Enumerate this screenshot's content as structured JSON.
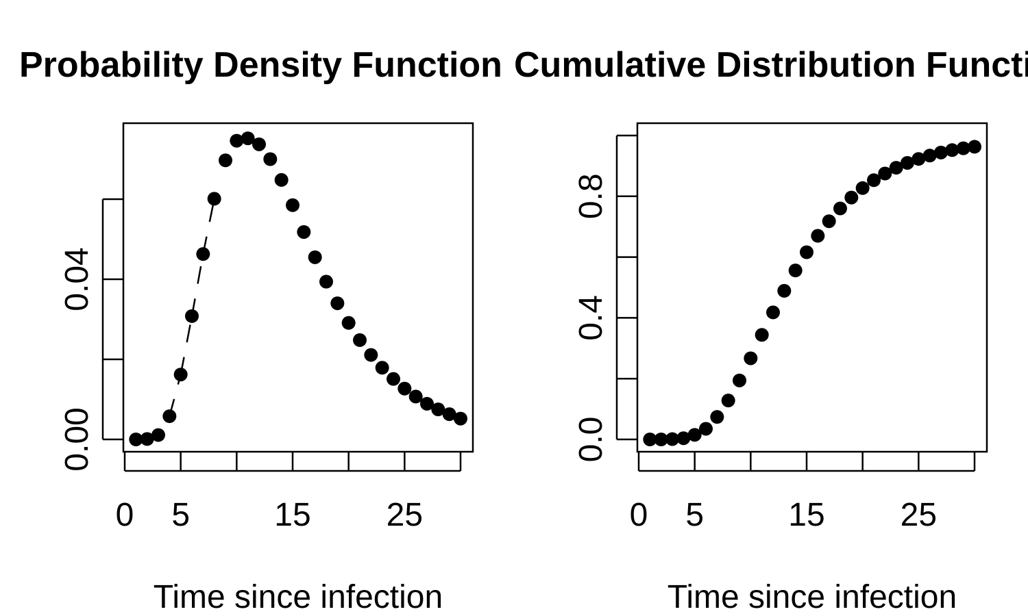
{
  "chart_data": [
    {
      "type": "scatter",
      "title": "Probability Density Function",
      "xlabel": "Time since infection",
      "ylabel": "",
      "xlim": [
        0,
        30
      ],
      "ylim": [
        0,
        0.08
      ],
      "xticks": [
        0,
        5,
        10,
        15,
        20,
        25,
        30
      ],
      "xtick_labels": [
        "0",
        "5",
        "",
        "15",
        "",
        "25",
        ""
      ],
      "yticks": [
        0,
        0.02,
        0.04,
        0.06
      ],
      "ytick_labels": [
        "0.00",
        "",
        "0.04",
        ""
      ],
      "grid": false,
      "connector": "dashed",
      "series": [
        {
          "x": [
            1,
            2,
            3,
            4,
            5,
            6,
            7,
            8,
            9,
            10,
            11,
            12,
            13,
            14,
            15,
            16,
            17,
            18,
            19,
            20,
            21,
            22,
            23,
            24,
            25,
            26,
            27,
            28,
            29,
            30
          ],
          "y": [
            0.0,
            0.0001,
            0.0011,
            0.0058,
            0.0162,
            0.0308,
            0.0463,
            0.0601,
            0.0697,
            0.0746,
            0.0752,
            0.0737,
            0.07,
            0.0648,
            0.0585,
            0.0518,
            0.0455,
            0.0394,
            0.034,
            0.0291,
            0.0248,
            0.0211,
            0.0179,
            0.0151,
            0.0127,
            0.0107,
            0.0089,
            0.0075,
            0.0063,
            0.0052
          ]
        }
      ]
    },
    {
      "type": "scatter",
      "title": "Cumulative Distribution Function",
      "xlabel": "Time since infection",
      "ylabel": "",
      "xlim": [
        0,
        30
      ],
      "ylim": [
        0,
        1
      ],
      "xticks": [
        0,
        5,
        10,
        15,
        20,
        25,
        30
      ],
      "xtick_labels": [
        "0",
        "5",
        "",
        "15",
        "",
        "25",
        ""
      ],
      "yticks": [
        0,
        0.2,
        0.4,
        0.6,
        0.8,
        1.0
      ],
      "ytick_labels": [
        "0.0",
        "",
        "0.4",
        "",
        "0.8",
        ""
      ],
      "grid": false,
      "series": [
        {
          "x": [
            1,
            2,
            3,
            4,
            5,
            6,
            7,
            8,
            9,
            10,
            11,
            12,
            13,
            14,
            15,
            16,
            17,
            18,
            19,
            20,
            21,
            22,
            23,
            24,
            25,
            26,
            27,
            28,
            29,
            30
          ],
          "y": [
            0.0,
            0.0,
            0.001,
            0.004,
            0.015,
            0.035,
            0.074,
            0.128,
            0.194,
            0.267,
            0.344,
            0.418,
            0.489,
            0.556,
            0.616,
            0.67,
            0.718,
            0.76,
            0.796,
            0.827,
            0.853,
            0.875,
            0.894,
            0.91,
            0.923,
            0.934,
            0.944,
            0.952,
            0.958,
            0.963
          ]
        }
      ]
    }
  ]
}
